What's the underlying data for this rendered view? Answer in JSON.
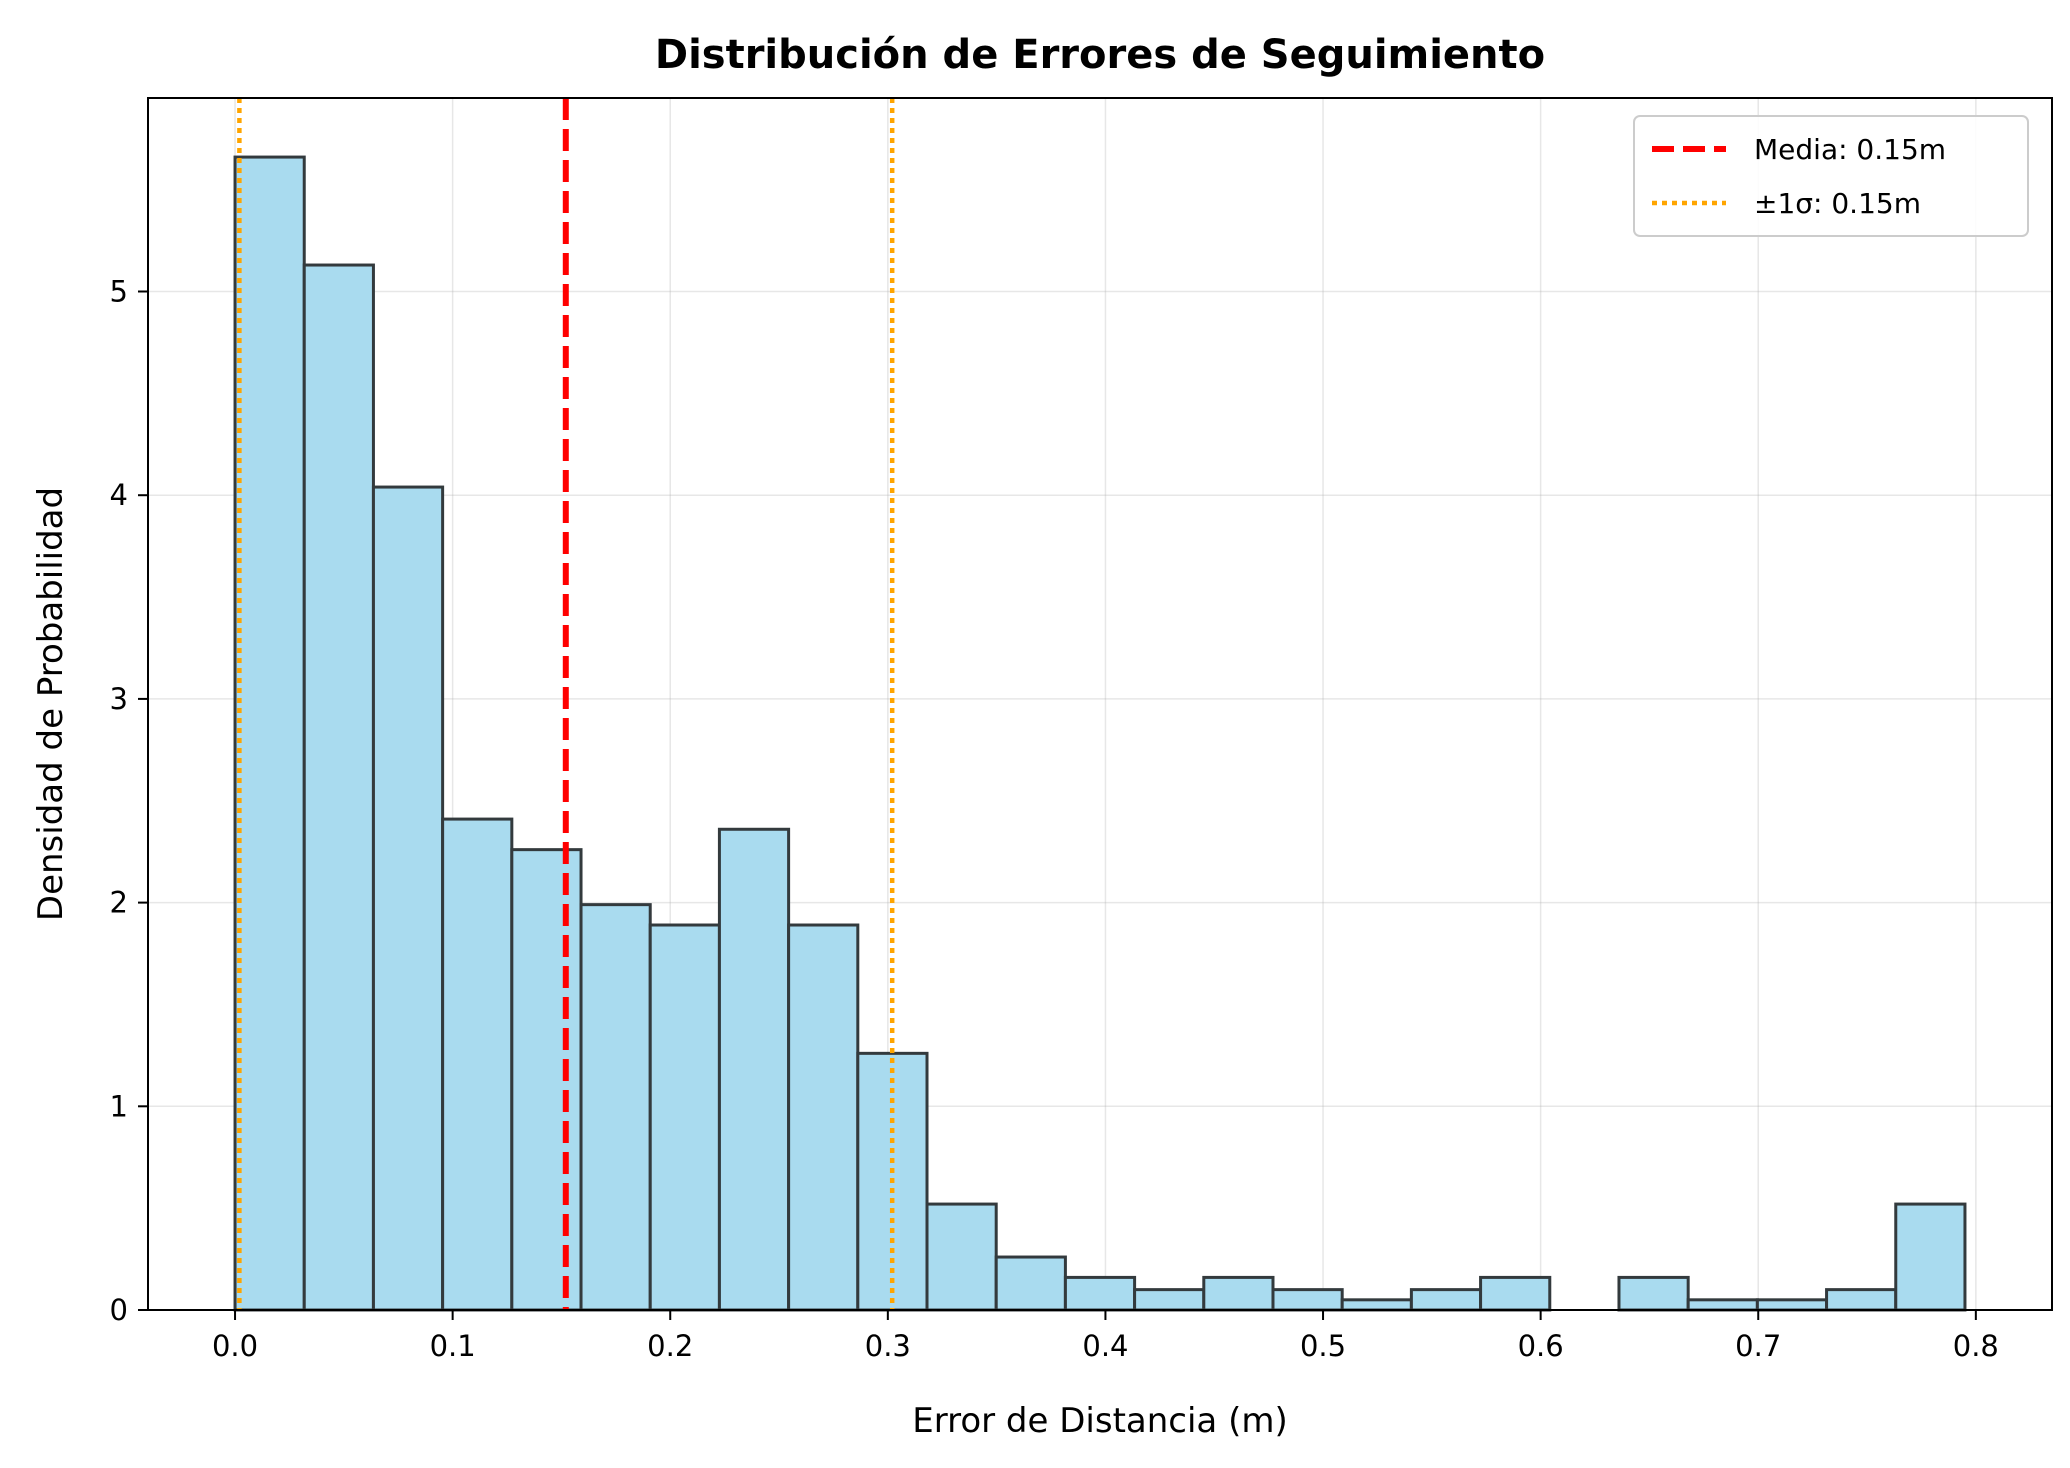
{
  "chart_data": {
    "type": "bar",
    "title": "Distribución de Errores de Seguimiento",
    "xlabel": "Error de Distancia (m)",
    "ylabel": "Densidad de Probabilidad",
    "xlim": [
      -0.04,
      0.835
    ],
    "ylim": [
      0,
      5.95
    ],
    "grid": true,
    "legend_position": "top-right",
    "xticks": [
      0.0,
      0.1,
      0.2,
      0.3,
      0.4,
      0.5,
      0.6,
      0.7,
      0.8
    ],
    "xtick_labels": [
      "0.0",
      "0.1",
      "0.2",
      "0.3",
      "0.4",
      "0.5",
      "0.6",
      "0.7",
      "0.8"
    ],
    "yticks": [
      0,
      1,
      2,
      3,
      4,
      5
    ],
    "ytick_labels": [
      "0",
      "1",
      "2",
      "3",
      "4",
      "5"
    ],
    "bin_start": 0.0,
    "bin_width": 0.0318,
    "values": [
      5.66,
      5.13,
      4.04,
      2.41,
      2.26,
      1.99,
      1.89,
      2.36,
      1.89,
      1.26,
      0.52,
      0.26,
      0.16,
      0.1,
      0.16,
      0.1,
      0.05,
      0.1,
      0.16,
      0.0,
      0.16,
      0.05,
      0.05,
      0.1,
      0.52
    ],
    "bar_color": "#a9dbef",
    "bar_edge_color": "#333a3d",
    "vlines": [
      {
        "label": "Media: 0.15m",
        "x": 0.152,
        "color": "#ff0000",
        "style": "dashed"
      },
      {
        "label": "±1σ: 0.15m",
        "x": 0.002,
        "color": "#ffa500",
        "style": "dotted"
      },
      {
        "label": "",
        "x": 0.302,
        "color": "#ffa500",
        "style": "dotted"
      }
    ],
    "legend": [
      {
        "label": "Media: 0.15m",
        "color": "#ff0000",
        "style": "dashed"
      },
      {
        "label": "±1σ: 0.15m",
        "color": "#ffa500",
        "style": "dotted"
      }
    ]
  }
}
